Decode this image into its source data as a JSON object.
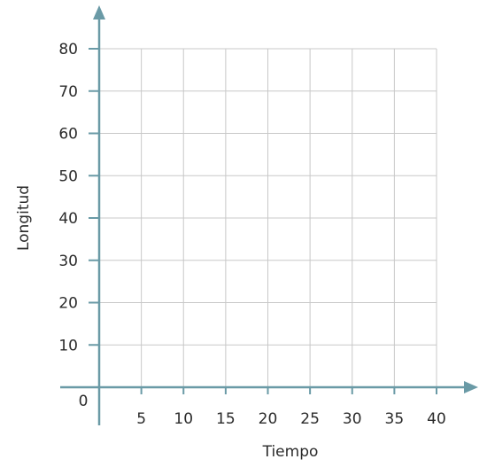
{
  "chart_data": {
    "type": "scatter",
    "title": "",
    "xlabel": "Tiempo",
    "ylabel": "Longitud",
    "xlim": [
      0,
      40
    ],
    "ylim": [
      0,
      80
    ],
    "x_ticks": [
      5,
      10,
      15,
      20,
      25,
      30,
      35,
      40
    ],
    "y_ticks": [
      10,
      20,
      30,
      40,
      50,
      60,
      70,
      80
    ],
    "origin_label": "0",
    "grid": true,
    "series": []
  },
  "colors": {
    "axis": "#6a9aa6",
    "grid": "#c8c8c8",
    "text": "#2b2b2b"
  }
}
